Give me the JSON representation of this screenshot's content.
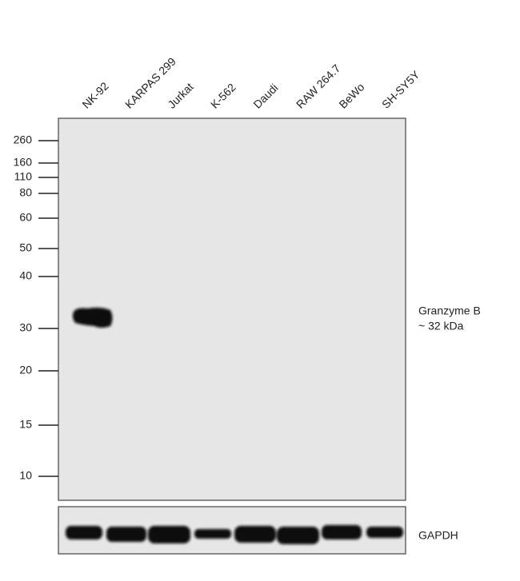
{
  "lanes": [
    "NK-92",
    "KARPAS 299",
    "Jurkat",
    "K-562",
    "Daudi",
    "RAW 264.7",
    "BeWo",
    "SH-SY5Y"
  ],
  "markers": [
    260,
    160,
    110,
    80,
    60,
    50,
    40,
    30,
    20,
    15,
    10
  ],
  "annotation": {
    "line1": "Granzyme B",
    "line2": "~ 32 kDa"
  },
  "loading_control": "GAPDH"
}
